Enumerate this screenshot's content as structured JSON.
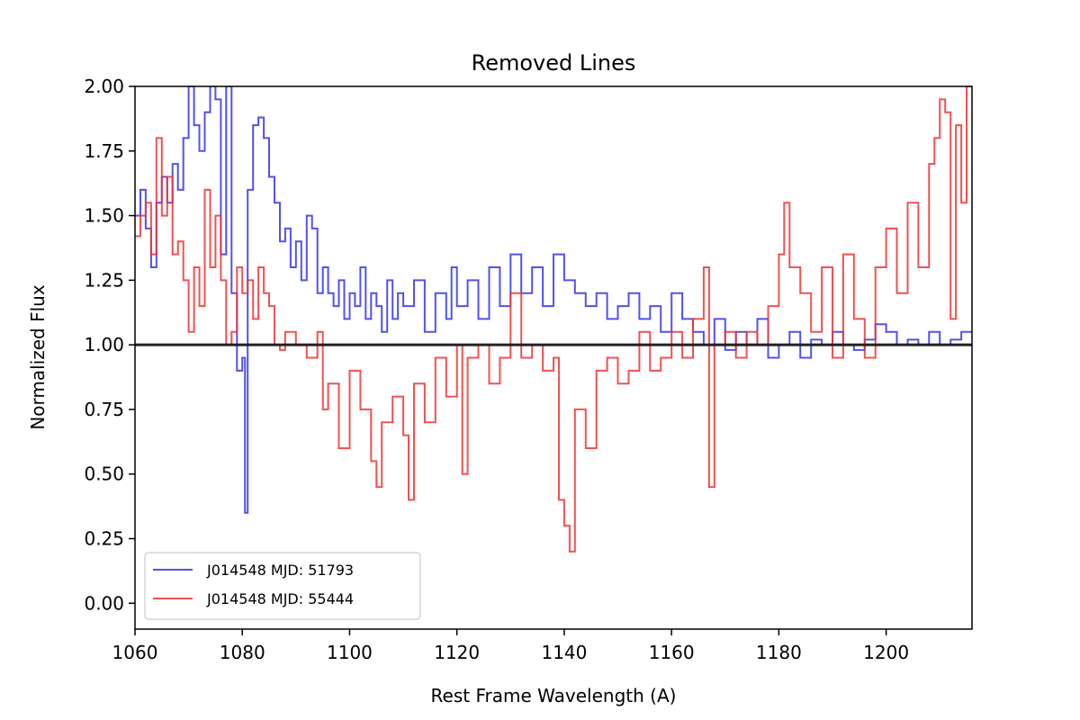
{
  "chart_data": {
    "type": "line",
    "title": "Removed Lines",
    "xlabel": "Rest Frame Wavelength (A)",
    "ylabel": "Normalized Flux",
    "xlim": [
      1060,
      1216
    ],
    "ylim": [
      -0.1,
      2.0
    ],
    "xticks": [
      1060,
      1080,
      1100,
      1120,
      1140,
      1160,
      1180,
      1200
    ],
    "xtick_labels": [
      "1060",
      "1080",
      "1100",
      "1120",
      "1140",
      "1160",
      "1180",
      "1200"
    ],
    "yticks": [
      0.0,
      0.25,
      0.5,
      0.75,
      1.0,
      1.25,
      1.5,
      1.75,
      2.0
    ],
    "ytick_labels": [
      "0.00",
      "0.25",
      "0.50",
      "0.75",
      "1.00",
      "1.25",
      "1.50",
      "1.75",
      "2.00"
    ],
    "reference_line": {
      "y": 1.0,
      "color": "#222222"
    },
    "legend": {
      "location": "lower-left"
    },
    "series": [
      {
        "name": "J014548 MJD: 51793",
        "color": "#3333ee",
        "style": "steps",
        "x": [
          1060,
          1061,
          1062,
          1063,
          1064,
          1065,
          1066,
          1067,
          1068,
          1069,
          1070,
          1071,
          1072,
          1073,
          1074,
          1075,
          1076,
          1077,
          1078,
          1079,
          1080,
          1080.5,
          1081,
          1082,
          1083,
          1084,
          1085,
          1086,
          1087,
          1088,
          1089,
          1090,
          1091,
          1092,
          1093,
          1094,
          1095,
          1096,
          1097,
          1098,
          1099,
          1100,
          1101,
          1102,
          1103,
          1104,
          1105,
          1106,
          1107,
          1108,
          1109,
          1110,
          1112,
          1114,
          1116,
          1118,
          1119,
          1120,
          1122,
          1124,
          1126,
          1128,
          1130,
          1132,
          1134,
          1136,
          1138,
          1140,
          1142,
          1144,
          1146,
          1148,
          1150,
          1152,
          1154,
          1156,
          1158,
          1160,
          1162,
          1164,
          1166,
          1168,
          1170,
          1172,
          1174,
          1176,
          1178,
          1180,
          1182,
          1184,
          1186,
          1188,
          1190,
          1192,
          1194,
          1196,
          1198,
          1200,
          1202,
          1204,
          1206,
          1208,
          1210,
          1212,
          1214,
          1216
        ],
        "values": [
          1.5,
          1.6,
          1.45,
          1.3,
          1.55,
          1.65,
          1.55,
          1.7,
          1.6,
          1.8,
          2.0,
          1.85,
          1.75,
          1.9,
          2.0,
          1.95,
          1.35,
          2.0,
          1.2,
          0.9,
          0.95,
          0.35,
          1.6,
          1.85,
          1.88,
          1.8,
          1.65,
          1.55,
          1.4,
          1.45,
          1.3,
          1.4,
          1.25,
          1.5,
          1.45,
          1.2,
          1.3,
          1.2,
          1.15,
          1.25,
          1.1,
          1.2,
          1.15,
          1.3,
          1.1,
          1.2,
          1.15,
          1.05,
          1.25,
          1.1,
          1.2,
          1.15,
          1.25,
          1.05,
          1.2,
          1.1,
          1.3,
          1.15,
          1.25,
          1.1,
          1.3,
          1.15,
          1.35,
          1.2,
          1.3,
          1.15,
          1.35,
          1.25,
          1.2,
          1.15,
          1.2,
          1.1,
          1.15,
          1.2,
          1.1,
          1.15,
          1.05,
          1.2,
          1.1,
          1.05,
          1.0,
          1.1,
          0.98,
          1.05,
          1.0,
          1.1,
          0.95,
          1.0,
          1.05,
          0.95,
          1.02,
          1.0,
          1.05,
          1.0,
          0.98,
          1.02,
          1.08,
          1.05,
          1.0,
          1.02,
          1.0,
          1.05,
          1.0,
          1.02,
          1.05,
          1.05
        ]
      },
      {
        "name": "J014548 MJD: 55444",
        "color": "#ee3333",
        "style": "steps",
        "x": [
          1060,
          1061,
          1062,
          1063,
          1064,
          1065,
          1066,
          1067,
          1068,
          1069,
          1070,
          1071,
          1072,
          1073,
          1074,
          1075,
          1076,
          1077,
          1078,
          1079,
          1080,
          1081,
          1082,
          1083,
          1084,
          1085,
          1086,
          1087,
          1088,
          1090,
          1092,
          1094,
          1095,
          1096,
          1098,
          1100,
          1102,
          1104,
          1105,
          1106,
          1108,
          1110,
          1111,
          1112,
          1114,
          1116,
          1118,
          1120,
          1121,
          1122,
          1124,
          1126,
          1128,
          1130,
          1132,
          1134,
          1136,
          1138,
          1139,
          1140,
          1141,
          1142,
          1144,
          1146,
          1148,
          1150,
          1152,
          1154,
          1156,
          1158,
          1160,
          1162,
          1164,
          1166,
          1167,
          1168,
          1170,
          1172,
          1174,
          1176,
          1178,
          1180,
          1181,
          1182,
          1184,
          1186,
          1188,
          1190,
          1192,
          1194,
          1196,
          1198,
          1200,
          1202,
          1204,
          1206,
          1208,
          1209,
          1210,
          1211,
          1212,
          1213,
          1214,
          1215
        ],
        "values": [
          1.42,
          1.5,
          1.55,
          1.35,
          1.8,
          1.5,
          1.65,
          1.35,
          1.4,
          1.25,
          1.05,
          1.3,
          1.15,
          1.6,
          1.3,
          1.5,
          1.25,
          1.0,
          1.05,
          1.3,
          1.2,
          1.25,
          1.1,
          1.3,
          1.2,
          1.15,
          1.0,
          0.98,
          1.05,
          1.0,
          0.95,
          1.05,
          0.75,
          0.85,
          0.6,
          0.9,
          0.75,
          0.55,
          0.45,
          0.7,
          0.8,
          0.65,
          0.4,
          0.85,
          0.7,
          0.95,
          0.8,
          1.0,
          0.5,
          0.95,
          1.0,
          0.85,
          0.95,
          1.2,
          0.95,
          1.0,
          0.9,
          0.95,
          0.4,
          0.3,
          0.2,
          0.75,
          0.6,
          0.9,
          0.95,
          0.85,
          0.9,
          1.05,
          0.9,
          0.95,
          1.05,
          0.95,
          1.1,
          1.3,
          0.45,
          1.0,
          1.05,
          0.95,
          1.05,
          1.0,
          1.15,
          1.35,
          1.55,
          1.3,
          1.2,
          1.05,
          1.3,
          0.95,
          1.35,
          1.1,
          0.95,
          1.3,
          1.45,
          1.2,
          1.55,
          1.3,
          1.7,
          1.8,
          1.95,
          1.9,
          1.1,
          1.85,
          1.55,
          2.0
        ]
      }
    ]
  }
}
